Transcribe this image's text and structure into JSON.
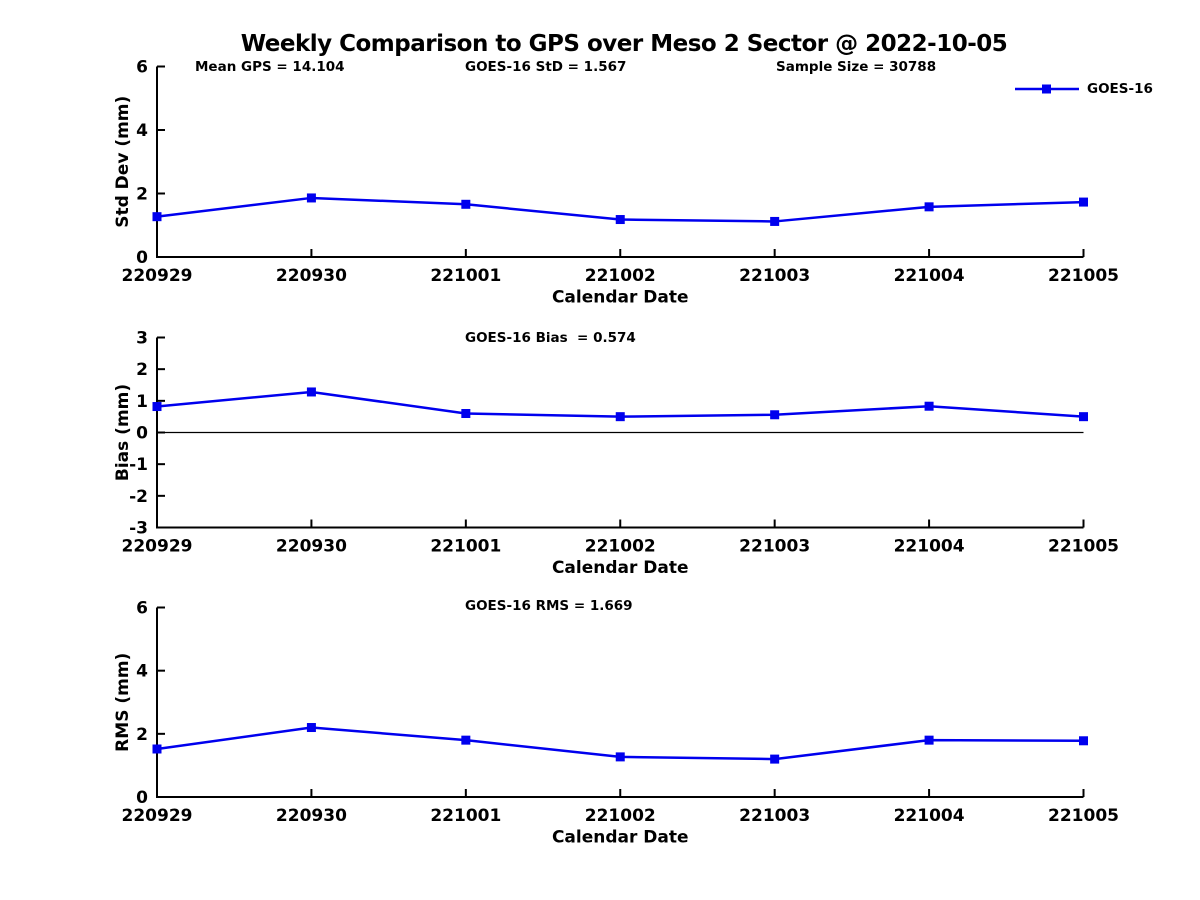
{
  "title": "Weekly Comparison to GPS over Meso 2 Sector @ 2022-10-05",
  "header_stats": {
    "mean_gps": "Mean GPS = 14.104",
    "goes16_std": "GOES-16 StD = 1.567",
    "sample_size": "Sample Size = 30788"
  },
  "legend": {
    "label": "GOES-16"
  },
  "colors": {
    "line": "#0000EE",
    "axis": "#000000",
    "text": "#000000"
  },
  "chart_data": [
    {
      "type": "line",
      "name": "std-dev",
      "ylabel": "Std Dev (mm)",
      "xlabel": "Calendar Date",
      "categories": [
        "220929",
        "220930",
        "221001",
        "221002",
        "221003",
        "221004",
        "221005"
      ],
      "series": [
        {
          "name": "GOES-16",
          "values": [
            1.27,
            1.86,
            1.66,
            1.18,
            1.12,
            1.58,
            1.73
          ]
        }
      ],
      "ylim": [
        0,
        6
      ],
      "yticks": [
        0,
        2,
        4,
        6
      ],
      "annotation": null,
      "zero_line": false,
      "grid": false,
      "legend_position": "top-right"
    },
    {
      "type": "line",
      "name": "bias",
      "ylabel": "Bias (mm)",
      "xlabel": "Calendar Date",
      "categories": [
        "220929",
        "220930",
        "221001",
        "221002",
        "221003",
        "221004",
        "221005"
      ],
      "series": [
        {
          "name": "GOES-16",
          "values": [
            0.82,
            1.28,
            0.6,
            0.5,
            0.56,
            0.83,
            0.5
          ]
        }
      ],
      "ylim": [
        -3,
        3
      ],
      "yticks": [
        -3,
        -2,
        -1,
        0,
        1,
        2,
        3
      ],
      "annotation": "GOES-16 Bias  = 0.574",
      "zero_line": true,
      "grid": false
    },
    {
      "type": "line",
      "name": "rms",
      "ylabel": "RMS (mm)",
      "xlabel": "Calendar Date",
      "categories": [
        "220929",
        "220930",
        "221001",
        "221002",
        "221003",
        "221004",
        "221005"
      ],
      "series": [
        {
          "name": "GOES-16",
          "values": [
            1.52,
            2.2,
            1.8,
            1.27,
            1.2,
            1.8,
            1.78
          ]
        }
      ],
      "ylim": [
        0,
        6
      ],
      "yticks": [
        0,
        2,
        4,
        6
      ],
      "annotation": "GOES-16 RMS = 1.669",
      "zero_line": false,
      "grid": false
    }
  ]
}
